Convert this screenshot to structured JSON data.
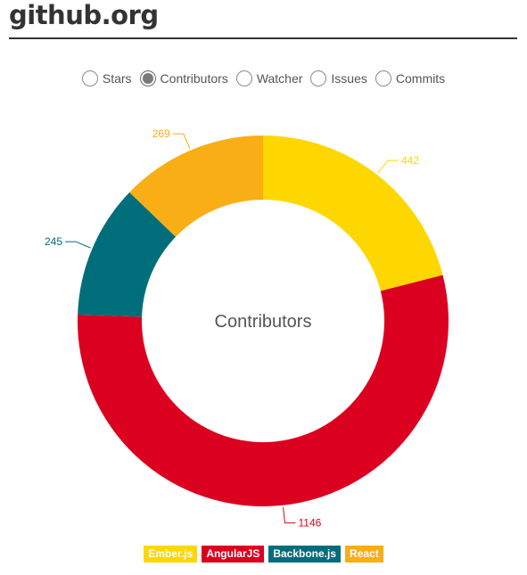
{
  "page": {
    "title": "github.org"
  },
  "radio_options": [
    {
      "label": "Stars",
      "checked": false
    },
    {
      "label": "Contributors",
      "checked": true
    },
    {
      "label": "Watcher",
      "checked": false
    },
    {
      "label": "Issues",
      "checked": false
    },
    {
      "label": "Commits",
      "checked": false
    }
  ],
  "chart_data": {
    "type": "pie",
    "donut": true,
    "center_label": "Contributors",
    "categories": [
      "Ember.js",
      "AngularJS",
      "Backbone.js",
      "React"
    ],
    "values": [
      442,
      1146,
      245,
      269
    ],
    "colors": [
      "#FFD700",
      "#DC0020",
      "#006E7A",
      "#F9AE15"
    ],
    "legend_position": "bottom"
  }
}
